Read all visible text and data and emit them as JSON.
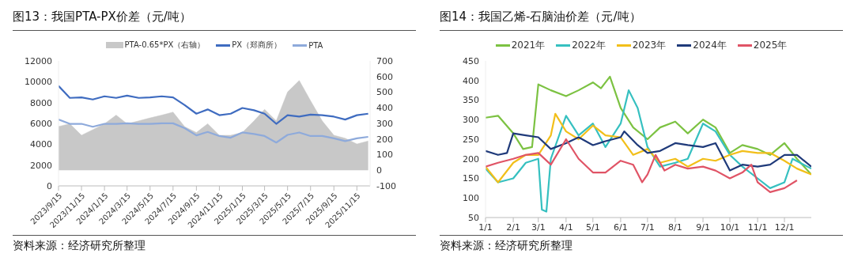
{
  "chart_data": [
    {
      "type": "line",
      "title": "图13：我国PTA-PX价差（元/吨）",
      "annotations": [
        "资料来源：经济研究所整理"
      ],
      "x": [
        "2023-09-15",
        "2023-10-15",
        "2023-11-15",
        "2023-12-15",
        "2024-01-15",
        "2024-02-15",
        "2024-03-15",
        "2024-04-15",
        "2024-05-15",
        "2024-06-15",
        "2024-07-15",
        "2024-08-15",
        "2024-09-15",
        "2024-10-15",
        "2024-11-15",
        "2024-12-15",
        "2025-01-15",
        "2025-02-15",
        "2025-03-15",
        "2025-04-15",
        "2025-05-15",
        "2025-06-15",
        "2025-07-15",
        "2025-08-15",
        "2025-09-15",
        "2025-10-15",
        "2025-11-15",
        "2025-12-15"
      ],
      "series": [
        {
          "name": "PTA-0.65*PX（右轴）",
          "type": "area",
          "axis": "y2",
          "color": "#c8c8c8",
          "values": [
            280,
            298,
            224,
            260,
            298,
            353,
            298,
            316,
            335,
            353,
            372,
            279,
            242,
            298,
            224,
            224,
            242,
            316,
            390,
            316,
            501,
            575,
            445,
            316,
            224,
            205,
            168,
            187
          ]
        },
        {
          "name": "PX（郑商所）",
          "color": "#3f6cc0",
          "values": [
            9600,
            8450,
            8500,
            8300,
            8600,
            8450,
            8670,
            8450,
            8500,
            8600,
            8500,
            7760,
            6930,
            7340,
            6790,
            6930,
            7480,
            7260,
            6930,
            5960,
            6790,
            6650,
            6850,
            6790,
            6650,
            6370,
            6790,
            6930
          ]
        },
        {
          "name": "PTA",
          "color": "#8eaadb",
          "values": [
            6370,
            5960,
            5960,
            5680,
            5960,
            5960,
            6010,
            5960,
            5960,
            6010,
            6010,
            5540,
            4850,
            5180,
            4790,
            4630,
            5130,
            4990,
            4790,
            4160,
            4900,
            5130,
            4790,
            4790,
            4570,
            4300,
            4570,
            4710
          ]
        }
      ],
      "xlim": [
        "2023-09-15",
        "2025-12-20"
      ],
      "xticks": [
        {
          "value": "2023-09-15",
          "label": "2023/9/15"
        },
        {
          "value": "2023-11-15",
          "label": "2023/11/15"
        },
        {
          "value": "2024-01-15",
          "label": "2024/1/15"
        },
        {
          "value": "2024-03-15",
          "label": "2024/3/15"
        },
        {
          "value": "2024-05-15",
          "label": "2024/5/15"
        },
        {
          "value": "2024-07-15",
          "label": "2024/7/15"
        },
        {
          "value": "2024-09-15",
          "label": "2024/9/15"
        },
        {
          "value": "2024-11-15",
          "label": "2024/11/15"
        },
        {
          "value": "2025-01-15",
          "label": "2025/1/15"
        },
        {
          "value": "2025-03-15",
          "label": "2025/3/15"
        },
        {
          "value": "2025-05-15",
          "label": "2025/5/15"
        },
        {
          "value": "2025-07-15",
          "label": "2025/7/15"
        },
        {
          "value": "2025-09-15",
          "label": "2025/9/15"
        },
        {
          "value": "2025-11-15",
          "label": "2025/11/15"
        }
      ],
      "ylim": [
        0,
        12000
      ],
      "yticks": [
        0,
        2000,
        4000,
        6000,
        8000,
        10000,
        12000
      ],
      "y2lim": [
        -100,
        700
      ],
      "y2ticks": [
        -100,
        0,
        100,
        200,
        300,
        400,
        500,
        600,
        700
      ],
      "legend": "top",
      "grid": false,
      "marker": "none",
      "line_style": "solid"
    },
    {
      "type": "line",
      "title": "图14：我国乙烯-石脑油价差（元/吨）",
      "annotations": [
        "资料来源：经济研究所整理"
      ],
      "series": [
        {
          "name": "2021年",
          "color": "#7cc242",
          "x": [
            "--01-01",
            "--01-15",
            "--02-01",
            "--02-12",
            "--02-22",
            "--03-01",
            "--03-15",
            "--04-01",
            "--04-15",
            "--05-01",
            "--05-10",
            "--05-20",
            "--06-01",
            "--06-15",
            "--07-01",
            "--07-15",
            "--08-01",
            "--08-15",
            "--09-01",
            "--09-15",
            "--10-01",
            "--10-15",
            "--11-01",
            "--11-15",
            "--12-01",
            "--12-15",
            "--12-31"
          ],
          "values": [
            305,
            310,
            265,
            225,
            230,
            390,
            375,
            360,
            375,
            395,
            380,
            410,
            330,
            280,
            250,
            280,
            295,
            265,
            300,
            280,
            215,
            235,
            225,
            210,
            240,
            200,
            160
          ]
        },
        {
          "name": "2022年",
          "color": "#36c0c0",
          "x": [
            "--01-01",
            "--01-15",
            "--02-01",
            "--02-15",
            "--03-01",
            "--03-05",
            "--03-10",
            "--03-15",
            "--04-01",
            "--04-15",
            "--05-01",
            "--05-15",
            "--06-01",
            "--06-10",
            "--06-20",
            "--07-01",
            "--07-15",
            "--08-01",
            "--08-15",
            "--09-01",
            "--09-15",
            "--10-01",
            "--10-15",
            "--11-01",
            "--11-15",
            "--12-01",
            "--12-10",
            "--12-31"
          ],
          "values": [
            175,
            140,
            150,
            190,
            200,
            70,
            65,
            200,
            310,
            260,
            290,
            230,
            290,
            375,
            330,
            230,
            180,
            190,
            200,
            290,
            270,
            210,
            180,
            150,
            125,
            140,
            200,
            175
          ]
        },
        {
          "name": "2023年",
          "color": "#f2bf1a",
          "x": [
            "--01-01",
            "--01-15",
            "--02-01",
            "--02-15",
            "--03-01",
            "--03-15",
            "--03-20",
            "--04-01",
            "--04-15",
            "--05-01",
            "--05-15",
            "--06-01",
            "--06-15",
            "--07-01",
            "--07-15",
            "--08-01",
            "--08-15",
            "--09-01",
            "--09-15",
            "--10-01",
            "--10-15",
            "--11-01",
            "--11-15",
            "--12-01",
            "--12-15",
            "--12-31"
          ],
          "values": [
            180,
            140,
            190,
            210,
            210,
            260,
            315,
            270,
            250,
            285,
            260,
            255,
            210,
            225,
            190,
            200,
            180,
            200,
            195,
            210,
            220,
            215,
            215,
            195,
            175,
            160
          ]
        },
        {
          "name": "2024年",
          "color": "#1f3a7a",
          "x": [
            "--01-01",
            "--01-15",
            "--01-25",
            "--02-01",
            "--02-15",
            "--03-01",
            "--03-15",
            "--04-01",
            "--04-15",
            "--05-01",
            "--05-15",
            "--06-01",
            "--06-05",
            "--06-20",
            "--07-01",
            "--07-15",
            "--08-01",
            "--08-15",
            "--09-01",
            "--09-15",
            "--10-01",
            "--10-15",
            "--11-01",
            "--11-15",
            "--12-01",
            "--12-15",
            "--12-31"
          ],
          "values": [
            220,
            210,
            215,
            265,
            260,
            255,
            225,
            240,
            255,
            235,
            245,
            255,
            270,
            235,
            215,
            220,
            240,
            235,
            230,
            240,
            170,
            185,
            180,
            185,
            210,
            210,
            180
          ]
        },
        {
          "name": "2025年",
          "color": "#e05466",
          "x": [
            "--01-01",
            "--01-15",
            "--02-01",
            "--02-15",
            "--03-01",
            "--03-15",
            "--04-01",
            "--04-15",
            "--05-01",
            "--05-15",
            "--06-01",
            "--06-15",
            "--06-25",
            "--07-01",
            "--07-10",
            "--07-20",
            "--08-01",
            "--08-15",
            "--09-01",
            "--09-15",
            "--10-01",
            "--10-15",
            "--10-25",
            "--11-01",
            "--11-15",
            "--12-01",
            "--12-15"
          ],
          "values": [
            180,
            190,
            200,
            210,
            215,
            185,
            250,
            200,
            165,
            165,
            195,
            185,
            140,
            160,
            210,
            170,
            185,
            175,
            180,
            170,
            150,
            165,
            185,
            140,
            115,
            125,
            145
          ]
        }
      ],
      "xlim": [
        "--01-01",
        "--12-31"
      ],
      "xticks": [
        {
          "value": "--01-01",
          "label": "1/1"
        },
        {
          "value": "--02-01",
          "label": "2/1"
        },
        {
          "value": "--03-01",
          "label": "3/1"
        },
        {
          "value": "--04-01",
          "label": "4/1"
        },
        {
          "value": "--05-01",
          "label": "5/1"
        },
        {
          "value": "--06-01",
          "label": "6/1"
        },
        {
          "value": "--07-01",
          "label": "7/1"
        },
        {
          "value": "--08-01",
          "label": "8/1"
        },
        {
          "value": "--09-01",
          "label": "9/1"
        },
        {
          "value": "--10-01",
          "label": "10/1"
        },
        {
          "value": "--11-01",
          "label": "11/1"
        },
        {
          "value": "--12-01",
          "label": "12/1"
        }
      ],
      "ylim": [
        50,
        450
      ],
      "yticks": [
        50,
        100,
        150,
        200,
        250,
        300,
        350,
        400,
        450
      ],
      "legend": "top",
      "grid": false,
      "marker": "none",
      "line_style": "solid"
    }
  ]
}
